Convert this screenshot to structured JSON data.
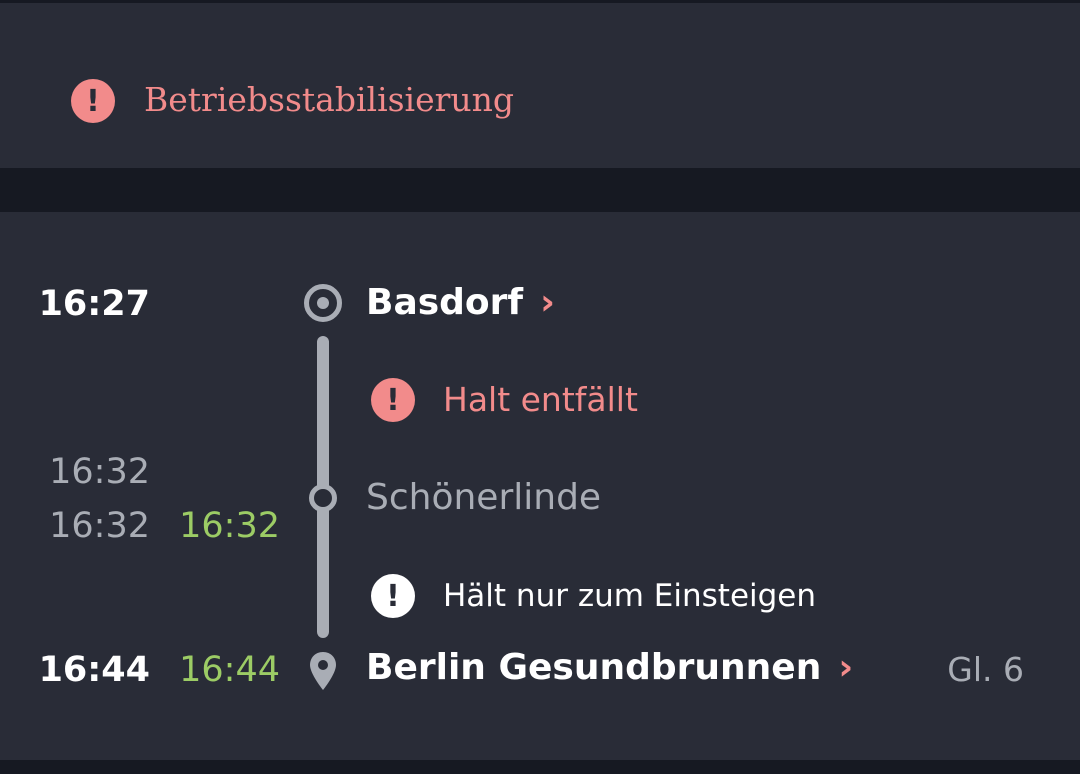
{
  "alert": {
    "icon": "exclamation-circle-icon",
    "text": "Betriebsstabilisierung"
  },
  "colors": {
    "alert": "#f28b8b",
    "on_time": "#9ccc65",
    "muted": "#a9adb5",
    "background": "#292c37"
  },
  "journey": {
    "origin": {
      "time": "16:27",
      "station": "Basdorf",
      "chevron": "›",
      "icon": "origin-circle-icon"
    },
    "notice_cancelled": {
      "icon": "exclamation-circle-icon",
      "text": "Halt entfällt"
    },
    "intermediate": {
      "arr_planned": "16:32",
      "dep_planned": "16:32",
      "dep_actual": "16:32",
      "station": "Schönerlinde",
      "icon": "stop-circle-icon"
    },
    "notice_boarding": {
      "icon": "exclamation-circle-icon",
      "text": "Hält nur zum Einsteigen"
    },
    "destination": {
      "time_planned": "16:44",
      "time_actual": "16:44",
      "station": "Berlin Gesundbrunnen",
      "chevron": "›",
      "platform": "Gl. 6",
      "icon": "location-pin-icon"
    }
  }
}
